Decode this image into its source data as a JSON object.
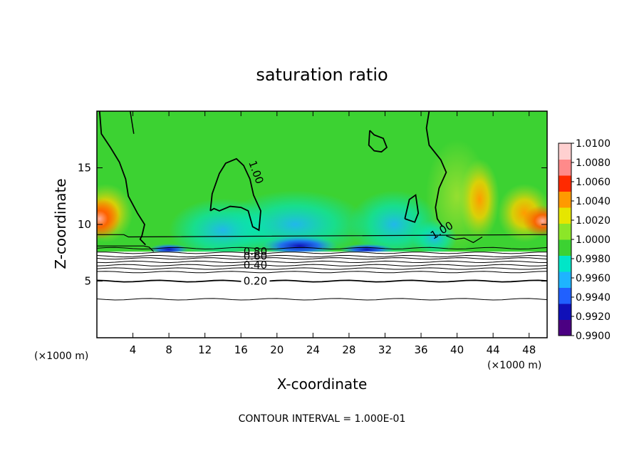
{
  "chart_data": {
    "type": "heatmap",
    "title": "saturation ratio",
    "xlabel": "X-coordinate",
    "ylabel": "Z-coordinate",
    "x_unit_left": "(×1000 m)",
    "x_unit_right": "(×1000 m)",
    "footer": "CONTOUR INTERVAL = 1.000E-01",
    "xlim": [
      0,
      50
    ],
    "ylim": [
      0,
      20
    ],
    "x_ticks": [
      4,
      8,
      12,
      16,
      20,
      24,
      28,
      32,
      36,
      40,
      44,
      48
    ],
    "y_ticks": [
      5,
      10,
      15
    ],
    "colorbar": {
      "min": 0.99,
      "max": 1.01,
      "levels": [
        0.99,
        0.992,
        0.994,
        0.996,
        0.998,
        1.0,
        1.002,
        1.004,
        1.006,
        1.008,
        1.01
      ],
      "labels": [
        "0.9900",
        "0.9920",
        "0.9940",
        "0.9960",
        "0.9980",
        "1.0000",
        "1.0020",
        "1.0040",
        "1.0060",
        "1.0080",
        "1.0100"
      ],
      "colors": [
        "#4b0082",
        "#1010b8",
        "#2060ff",
        "#1eb4ff",
        "#00e6c8",
        "#3cd232",
        "#8ce628",
        "#e6e600",
        "#ff9a00",
        "#ff2a00",
        "#ff8a8a",
        "#ffd0d0"
      ]
    },
    "contour_labels": [
      {
        "text": "1.00",
        "x": 17.3,
        "z": 14.5
      },
      {
        "text": "1.00",
        "x": 38.5,
        "z": 9.2
      },
      {
        "text": "0.80",
        "x": 17.6,
        "z": 7.3
      },
      {
        "text": "0.60",
        "x": 17.6,
        "z": 6.9
      },
      {
        "text": "0.40",
        "x": 17.6,
        "z": 6.1
      },
      {
        "text": "0.20",
        "x": 17.6,
        "z": 4.7
      }
    ],
    "contour_lines_below_cloud": [
      7.9,
      7.5,
      7.2,
      7.0,
      6.7,
      6.4,
      6.1,
      5.8,
      5.0,
      3.4
    ]
  }
}
